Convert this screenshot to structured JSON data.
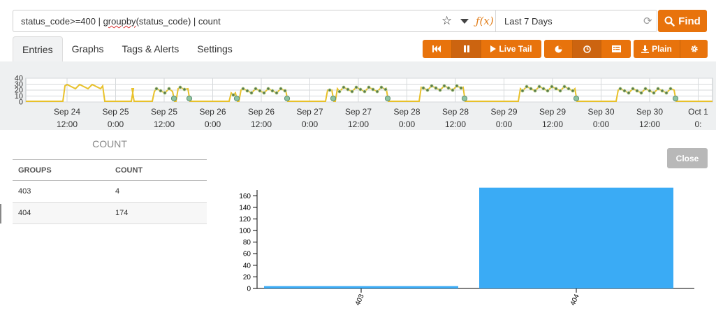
{
  "search": {
    "query_parts": [
      "status_code>=400 | ",
      "groupby",
      "(status_code) | count"
    ],
    "time_range": "Last 7 Days",
    "find_label": "Find",
    "icons": [
      "star-icon",
      "chevron-down-icon",
      "function-icon",
      "refresh-icon",
      "search-icon"
    ]
  },
  "tabs": [
    "Entries",
    "Graphs",
    "Tags & Alerts",
    "Settings"
  ],
  "toolbar": {
    "live_tail_label": "Live Tail",
    "plain_label": "Plain",
    "accent": "#e8730c"
  },
  "timeline": {
    "y_ticks": [
      "40",
      "30",
      "20",
      "10",
      "0"
    ],
    "x_ticks": [
      {
        "date": "Sep 24",
        "time": "12:00"
      },
      {
        "date": "Sep 25",
        "time": "0:00"
      },
      {
        "date": "Sep 25",
        "time": "12:00"
      },
      {
        "date": "Sep 26",
        "time": "0:00"
      },
      {
        "date": "Sep 26",
        "time": "12:00"
      },
      {
        "date": "Sep 27",
        "time": "0:00"
      },
      {
        "date": "Sep 27",
        "time": "12:00"
      },
      {
        "date": "Sep 28",
        "time": "0:00"
      },
      {
        "date": "Sep 28",
        "time": "12:00"
      },
      {
        "date": "Sep 29",
        "time": "0:00"
      },
      {
        "date": "Sep 29",
        "time": "12:00"
      },
      {
        "date": "Sep 30",
        "time": "0:00"
      },
      {
        "date": "Sep 30",
        "time": "12:00"
      },
      {
        "date": "Oct 1",
        "time": "0:"
      }
    ],
    "line_color": "#e8c12a"
  },
  "results": {
    "title": "COUNT",
    "columns": [
      "GROUPS",
      "COUNT"
    ],
    "rows": [
      {
        "group": "403",
        "count": "4"
      },
      {
        "group": "404",
        "count": "174"
      }
    ]
  },
  "close_label": "Close",
  "chart_data": {
    "type": "bar",
    "categories": [
      "403",
      "404"
    ],
    "values": [
      4,
      174
    ],
    "ylim": [
      0,
      170
    ],
    "y_ticks": [
      0,
      20,
      40,
      60,
      80,
      100,
      120,
      140,
      160
    ],
    "bar_color": "#3aabf5"
  }
}
